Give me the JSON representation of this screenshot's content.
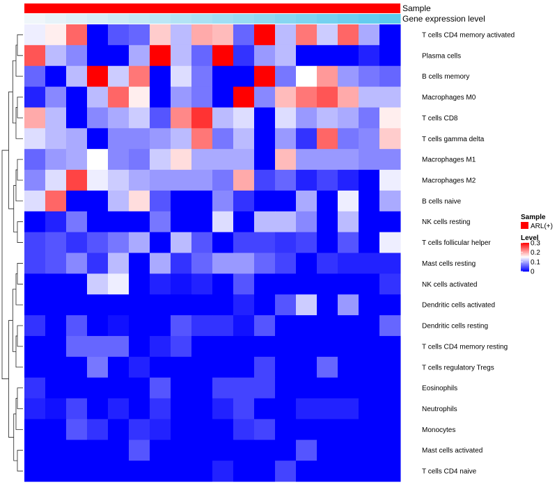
{
  "chart_data": {
    "type": "heatmap",
    "title": "",
    "annotations": [
      {
        "name": "Sample",
        "values_label": "ARL(+)",
        "color": "#ff0000"
      },
      {
        "name": "Gene expression level",
        "style": "gradient",
        "color_low": "#f0f6fa",
        "color_high": "#5bc9ee"
      }
    ],
    "rows": [
      "T cells CD4 memory activated",
      "Plasma cells",
      "B cells memory",
      "Macrophages M0",
      "T cells CD8",
      "T cells gamma delta",
      "Macrophages M1",
      "Macrophages M2",
      "B cells naive",
      "NK cells resting",
      "T cells follicular helper",
      "Mast cells resting",
      "NK cells activated",
      "Dendritic cells activated",
      "Dendritic cells resting",
      "T cells CD4 memory resting",
      "T cells regulatory  Tregs",
      "Eosinophils",
      "Neutrophils",
      "Monocytes",
      "Mast cells activated",
      "T cells CD4 naive"
    ],
    "n_columns": 18,
    "values": [
      [
        0.14,
        0.16,
        0.24,
        0.0,
        0.05,
        0.06,
        0.18,
        0.11,
        0.2,
        0.19,
        0.06,
        0.3,
        0.11,
        0.23,
        0.12,
        0.24,
        0.1,
        0.0
      ],
      [
        0.25,
        0.11,
        0.08,
        0.0,
        0.0,
        0.1,
        0.3,
        0.11,
        0.06,
        0.3,
        0.03,
        0.09,
        0.11,
        0.0,
        0.0,
        0.0,
        0.02,
        0.0
      ],
      [
        0.06,
        0.0,
        0.11,
        0.3,
        0.12,
        0.23,
        0.0,
        0.13,
        0.07,
        0.0,
        0.0,
        0.3,
        0.07,
        0.15,
        0.21,
        0.09,
        0.07,
        0.06
      ],
      [
        0.02,
        0.08,
        0.0,
        0.11,
        0.24,
        0.16,
        0.0,
        0.09,
        0.07,
        0.0,
        0.3,
        0.08,
        0.19,
        0.23,
        0.25,
        0.2,
        0.11,
        0.11
      ],
      [
        0.2,
        0.11,
        0.0,
        0.08,
        0.1,
        0.12,
        0.05,
        0.22,
        0.27,
        0.11,
        0.13,
        0.0,
        0.13,
        0.09,
        0.11,
        0.1,
        0.07,
        0.16
      ],
      [
        0.13,
        0.11,
        0.1,
        0.0,
        0.08,
        0.08,
        0.09,
        0.11,
        0.23,
        0.07,
        0.11,
        0.0,
        0.09,
        0.03,
        0.24,
        0.07,
        0.08,
        0.18
      ],
      [
        0.06,
        0.09,
        0.1,
        0.15,
        0.08,
        0.07,
        0.12,
        0.17,
        0.1,
        0.1,
        0.1,
        0.0,
        0.19,
        0.09,
        0.09,
        0.09,
        0.08,
        0.08
      ],
      [
        0.08,
        0.13,
        0.26,
        0.14,
        0.12,
        0.1,
        0.09,
        0.09,
        0.09,
        0.07,
        0.2,
        0.04,
        0.06,
        0.02,
        0.04,
        0.02,
        0.0,
        0.14
      ],
      [
        0.13,
        0.24,
        0.0,
        0.0,
        0.11,
        0.17,
        0.05,
        0.0,
        0.0,
        0.08,
        0.03,
        0.0,
        0.0,
        0.1,
        0.0,
        0.14,
        0.0,
        0.1
      ],
      [
        0.0,
        0.02,
        0.07,
        0.0,
        0.0,
        0.0,
        0.07,
        0.0,
        0.0,
        0.13,
        0.0,
        0.11,
        0.11,
        0.08,
        0.0,
        0.11,
        0.0,
        0.0
      ],
      [
        0.04,
        0.05,
        0.03,
        0.05,
        0.07,
        0.1,
        0.0,
        0.11,
        0.05,
        0.0,
        0.04,
        0.04,
        0.03,
        0.04,
        0.0,
        0.05,
        0.0,
        0.14
      ],
      [
        0.04,
        0.05,
        0.08,
        0.03,
        0.11,
        0.0,
        0.1,
        0.03,
        0.06,
        0.09,
        0.09,
        0.06,
        0.04,
        0.0,
        0.03,
        0.02,
        0.02,
        0.02
      ],
      [
        0.0,
        0.0,
        0.0,
        0.12,
        0.14,
        0.0,
        0.02,
        0.01,
        0.02,
        0.0,
        0.05,
        0.0,
        0.0,
        0.0,
        0.0,
        0.0,
        0.0,
        0.03
      ],
      [
        0.0,
        0.0,
        0.0,
        0.0,
        0.0,
        0.0,
        0.0,
        0.0,
        0.0,
        0.0,
        0.02,
        0.0,
        0.05,
        0.12,
        0.0,
        0.09,
        0.0,
        0.0
      ],
      [
        0.03,
        0.0,
        0.05,
        0.0,
        0.01,
        0.0,
        0.0,
        0.05,
        0.03,
        0.03,
        0.01,
        0.05,
        0.0,
        0.0,
        0.0,
        0.0,
        0.0,
        0.06
      ],
      [
        0.0,
        0.0,
        0.06,
        0.06,
        0.06,
        0.0,
        0.02,
        0.04,
        0.0,
        0.0,
        0.0,
        0.0,
        0.0,
        0.0,
        0.0,
        0.0,
        0.0,
        0.0
      ],
      [
        0.0,
        0.0,
        0.0,
        0.07,
        0.0,
        0.02,
        0.0,
        0.0,
        0.0,
        0.0,
        0.0,
        0.04,
        0.0,
        0.0,
        0.06,
        0.0,
        0.0,
        0.0
      ],
      [
        0.03,
        0.0,
        0.0,
        0.0,
        0.0,
        0.0,
        0.05,
        0.0,
        0.0,
        0.04,
        0.04,
        0.04,
        0.0,
        0.0,
        0.0,
        0.0,
        0.0,
        0.0
      ],
      [
        0.02,
        0.01,
        0.04,
        0.0,
        0.02,
        0.0,
        0.03,
        0.0,
        0.0,
        0.02,
        0.04,
        0.0,
        0.0,
        0.02,
        0.02,
        0.02,
        0.0,
        0.0
      ],
      [
        0.0,
        0.0,
        0.05,
        0.03,
        0.0,
        0.03,
        0.02,
        0.0,
        0.0,
        0.0,
        0.03,
        0.04,
        0.0,
        0.0,
        0.0,
        0.0,
        0.0,
        0.0
      ],
      [
        0.0,
        0.0,
        0.0,
        0.0,
        0.0,
        0.05,
        0.0,
        0.0,
        0.0,
        0.0,
        0.0,
        0.0,
        0.0,
        0.05,
        0.0,
        0.0,
        0.0,
        0.0
      ],
      [
        0.0,
        0.0,
        0.0,
        0.0,
        0.0,
        0.0,
        0.0,
        0.0,
        0.0,
        0.02,
        0.0,
        0.0,
        0.04,
        0.0,
        0.0,
        0.0,
        0.0,
        0.0
      ]
    ],
    "color_scale": {
      "low": "#0000ff",
      "mid": "#ffffff",
      "high": "#ff0000",
      "min": 0,
      "max": 0.3
    },
    "legend": {
      "sample_title": "Sample",
      "sample_entry": "ARL(+)",
      "level_title": "Level",
      "ticks": [
        "0.3",
        "0.2",
        "0.1",
        "0"
      ],
      "tick_values": [
        0.3,
        0.2,
        0.1,
        0
      ]
    }
  }
}
